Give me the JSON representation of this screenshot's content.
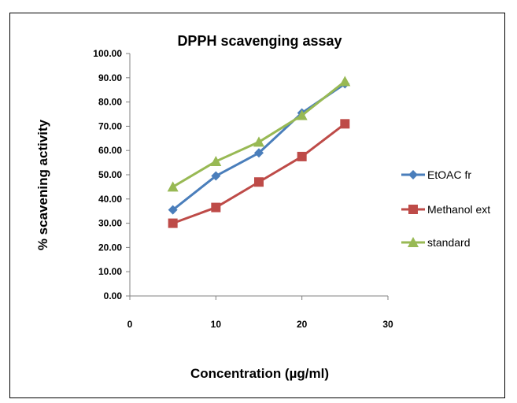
{
  "chart_data": {
    "type": "line",
    "title": "DPPH scavenging assay",
    "xlabel": "Concentration (µg/ml)",
    "ylabel": "% scavening activity",
    "xlim": [
      0,
      30
    ],
    "ylim": [
      0,
      100
    ],
    "x_ticks": [
      "0",
      "10",
      "20",
      "30"
    ],
    "y_ticks": [
      "0.00",
      "10.00",
      "20.00",
      "30.00",
      "40.00",
      "50.00",
      "60.00",
      "70.00",
      "80.00",
      "90.00",
      "100.00"
    ],
    "grid": false,
    "legend_position": "right",
    "x": [
      5,
      10,
      15,
      20,
      25
    ],
    "series": [
      {
        "name": "EtOAC fr",
        "values": [
          35.5,
          49.5,
          59,
          75.5,
          87.5
        ],
        "color": "#4A7EBB",
        "marker": "diamond"
      },
      {
        "name": "Methanol ext",
        "values": [
          30,
          36.5,
          47,
          57.5,
          71
        ],
        "color": "#BE4B48",
        "marker": "square"
      },
      {
        "name": "standard",
        "values": [
          45,
          55.5,
          63.5,
          74.5,
          88.5
        ],
        "color": "#98B954",
        "marker": "triangle"
      }
    ]
  }
}
